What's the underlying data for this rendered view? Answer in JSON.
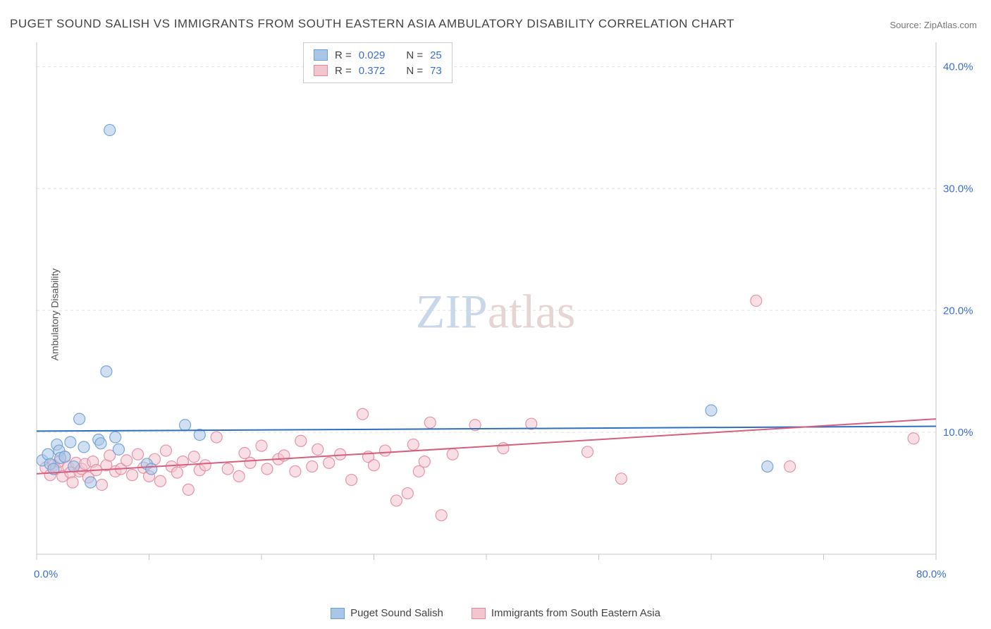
{
  "title": "PUGET SOUND SALISH VS IMMIGRANTS FROM SOUTH EASTERN ASIA AMBULATORY DISABILITY CORRELATION CHART",
  "source": "Source: ZipAtlas.com",
  "ylabel": "Ambulatory Disability",
  "watermark": {
    "part1": "ZIP",
    "part2": "atlas"
  },
  "chart": {
    "type": "scatter",
    "background_color": "#ffffff",
    "grid_color": "#e3e3e3",
    "axis_color": "#c7c7c7",
    "tick_color": "#c7c7c7",
    "xlim": [
      0,
      80
    ],
    "ylim": [
      0,
      42
    ],
    "x_axis": {
      "tick_positions": [
        0,
        10,
        20,
        30,
        40,
        50,
        60,
        70,
        80
      ],
      "labels": [
        {
          "pos": 0,
          "text": "0.0%"
        },
        {
          "pos": 80,
          "text": "80.0%"
        }
      ],
      "label_color": "#3a6fd8",
      "label_fontsize": 15
    },
    "y_axis": {
      "grid_positions": [
        10,
        20,
        30,
        40
      ],
      "labels": [
        {
          "pos": 10,
          "text": "10.0%"
        },
        {
          "pos": 20,
          "text": "20.0%"
        },
        {
          "pos": 30,
          "text": "30.0%"
        },
        {
          "pos": 40,
          "text": "40.0%"
        }
      ],
      "label_color": "#3a6fd8",
      "label_fontsize": 15
    },
    "marker_radius": 8,
    "marker_opacity": 0.55,
    "marker_stroke_opacity": 0.9,
    "line_width": 2,
    "series": [
      {
        "name": "Puget Sound Salish",
        "fill": "#a9c6e8",
        "stroke": "#6d9fd4",
        "line_color": "#2e6fc0",
        "R": "0.029",
        "N": "25",
        "trend": {
          "x1": 0,
          "y1": 10.1,
          "x2": 80,
          "y2": 10.5
        },
        "points": [
          [
            0.5,
            7.7
          ],
          [
            1.0,
            8.2
          ],
          [
            1.2,
            7.4
          ],
          [
            1.5,
            7.0
          ],
          [
            1.8,
            9.0
          ],
          [
            2.0,
            8.5
          ],
          [
            2.1,
            7.9
          ],
          [
            2.5,
            8.0
          ],
          [
            3.0,
            9.2
          ],
          [
            3.3,
            7.2
          ],
          [
            3.8,
            11.1
          ],
          [
            4.2,
            8.8
          ],
          [
            4.8,
            5.9
          ],
          [
            5.5,
            9.4
          ],
          [
            5.7,
            9.1
          ],
          [
            6.2,
            15.0
          ],
          [
            6.5,
            34.8
          ],
          [
            7.0,
            9.6
          ],
          [
            7.3,
            8.6
          ],
          [
            9.8,
            7.4
          ],
          [
            10.2,
            7.0
          ],
          [
            13.2,
            10.6
          ],
          [
            14.5,
            9.8
          ],
          [
            60.0,
            11.8
          ],
          [
            65.0,
            7.2
          ]
        ]
      },
      {
        "name": "Immigrants from South Eastern Asia",
        "fill": "#f3c5cf",
        "stroke": "#e48aa0",
        "line_color": "#d85e7d",
        "R": "0.372",
        "N": "73",
        "trend": {
          "x1": 0,
          "y1": 6.6,
          "x2": 80,
          "y2": 11.1
        },
        "points": [
          [
            0.8,
            7.1
          ],
          [
            1.2,
            6.5
          ],
          [
            1.5,
            7.3
          ],
          [
            1.7,
            7.0
          ],
          [
            2.0,
            7.6
          ],
          [
            2.3,
            6.4
          ],
          [
            2.5,
            8.0
          ],
          [
            2.8,
            7.2
          ],
          [
            3.0,
            6.7
          ],
          [
            3.2,
            5.9
          ],
          [
            3.5,
            7.5
          ],
          [
            3.8,
            6.8
          ],
          [
            4.0,
            7.0
          ],
          [
            4.3,
            7.4
          ],
          [
            4.6,
            6.3
          ],
          [
            5.0,
            7.6
          ],
          [
            5.3,
            6.9
          ],
          [
            5.8,
            5.7
          ],
          [
            6.2,
            7.3
          ],
          [
            6.5,
            8.1
          ],
          [
            7.0,
            6.8
          ],
          [
            7.5,
            7.0
          ],
          [
            8.0,
            7.7
          ],
          [
            8.5,
            6.5
          ],
          [
            9.0,
            8.2
          ],
          [
            9.5,
            7.1
          ],
          [
            10.0,
            6.4
          ],
          [
            10.5,
            7.8
          ],
          [
            11.0,
            6.0
          ],
          [
            11.5,
            8.5
          ],
          [
            12.0,
            7.2
          ],
          [
            12.5,
            6.7
          ],
          [
            13.0,
            7.6
          ],
          [
            13.5,
            5.3
          ],
          [
            14.0,
            8.0
          ],
          [
            14.5,
            6.9
          ],
          [
            15.0,
            7.3
          ],
          [
            16.0,
            9.6
          ],
          [
            17.0,
            7.0
          ],
          [
            18.0,
            6.4
          ],
          [
            18.5,
            8.3
          ],
          [
            19.0,
            7.5
          ],
          [
            20.0,
            8.9
          ],
          [
            20.5,
            7.0
          ],
          [
            21.5,
            7.8
          ],
          [
            22.0,
            8.1
          ],
          [
            23.0,
            6.8
          ],
          [
            23.5,
            9.3
          ],
          [
            24.5,
            7.2
          ],
          [
            25.0,
            8.6
          ],
          [
            26.0,
            7.5
          ],
          [
            27.0,
            8.2
          ],
          [
            28.0,
            6.1
          ],
          [
            29.0,
            11.5
          ],
          [
            29.5,
            8.0
          ],
          [
            30.0,
            7.3
          ],
          [
            31.0,
            8.5
          ],
          [
            32.0,
            4.4
          ],
          [
            33.0,
            5.0
          ],
          [
            33.5,
            9.0
          ],
          [
            34.0,
            6.8
          ],
          [
            34.5,
            7.6
          ],
          [
            35.0,
            10.8
          ],
          [
            36.0,
            3.2
          ],
          [
            37.0,
            8.2
          ],
          [
            39.0,
            10.6
          ],
          [
            41.5,
            8.7
          ],
          [
            44.0,
            10.7
          ],
          [
            49.0,
            8.4
          ],
          [
            52.0,
            6.2
          ],
          [
            64.0,
            20.8
          ],
          [
            67.0,
            7.2
          ],
          [
            78.0,
            9.5
          ]
        ]
      }
    ],
    "legend_top": {
      "R_label": "R =",
      "N_label": "N ="
    },
    "legend_bottom_labels": [
      "Puget Sound Salish",
      "Immigrants from South Eastern Asia"
    ]
  }
}
